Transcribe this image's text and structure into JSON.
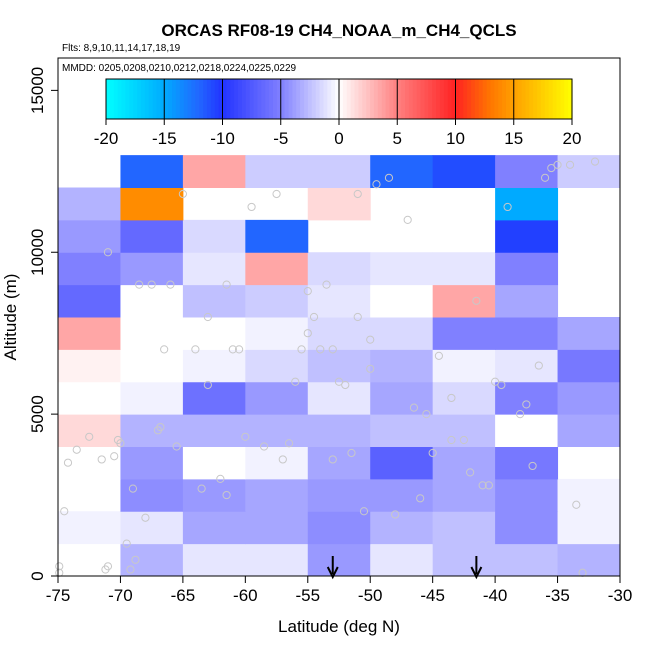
{
  "chart_data": {
    "type": "heatmap",
    "title": "ORCAS RF08-19 CH4_NOAA_m_CH4_QCLS",
    "flights_note": "Flts: 8,9,10,11,14,17,18,19",
    "dates_note": "MMDD: 0205,0208,0210,0212,0218,0224,0225,0229",
    "xlabel": "Latitude (deg N)",
    "ylabel": "Altitude (m)",
    "xlim": [
      -75,
      -30
    ],
    "ylim": [
      0,
      16000
    ],
    "x_ticks": [
      -75,
      -70,
      -65,
      -60,
      -55,
      -50,
      -45,
      -40,
      -35,
      -30
    ],
    "x_tick_labels": [
      "-75",
      "-70",
      "-65",
      "-60",
      "-55",
      "-50",
      "-45",
      "-40",
      "-35",
      "-30"
    ],
    "y_ticks": [
      0,
      5000,
      10000,
      15000
    ],
    "y_tick_labels": [
      "0",
      "5000",
      "10000",
      "15000"
    ],
    "colorbar": {
      "range": [
        -20,
        20
      ],
      "ticks": [
        -20,
        -15,
        -10,
        -5,
        0,
        5,
        10,
        15,
        20
      ],
      "tick_labels": [
        "-20",
        "-15",
        "-10",
        "-5",
        "0",
        "5",
        "10",
        "15",
        "20"
      ],
      "colors": [
        "#00ffff",
        "#00aaff",
        "#2255ff",
        "#2233ff",
        "#8080ff",
        "#ffffff",
        "#ff8080",
        "#ff2222",
        "#ff6600",
        "#ffaa00",
        "#ffff00"
      ]
    },
    "bin_width_deg": 5,
    "bin_height_m": 1000,
    "cells": [
      {
        "x": -75,
        "y": 0,
        "v": 0
      },
      {
        "x": -70,
        "y": 0,
        "v": -3
      },
      {
        "x": -65,
        "y": 0,
        "v": -1
      },
      {
        "x": -60,
        "y": 0,
        "v": -1
      },
      {
        "x": -55,
        "y": 0,
        "v": -4
      },
      {
        "x": -50,
        "y": 0,
        "v": -1
      },
      {
        "x": -45,
        "y": 0,
        "v": -2.5
      },
      {
        "x": -40,
        "y": 0,
        "v": -2.5
      },
      {
        "x": -35,
        "y": 0,
        "v": -3
      },
      {
        "x": -75,
        "y": 1000,
        "v": -0.5
      },
      {
        "x": -70,
        "y": 1000,
        "v": -1
      },
      {
        "x": -65,
        "y": 1000,
        "v": -3.5
      },
      {
        "x": -60,
        "y": 1000,
        "v": -3.5
      },
      {
        "x": -55,
        "y": 1000,
        "v": -4.5
      },
      {
        "x": -50,
        "y": 1000,
        "v": -3
      },
      {
        "x": -45,
        "y": 1000,
        "v": -2.5
      },
      {
        "x": -40,
        "y": 1000,
        "v": -4.5
      },
      {
        "x": -35,
        "y": 1000,
        "v": -0.5
      },
      {
        "x": -70,
        "y": 2000,
        "v": -4.5
      },
      {
        "x": -65,
        "y": 2000,
        "v": -4
      },
      {
        "x": -60,
        "y": 2000,
        "v": -3.5
      },
      {
        "x": -55,
        "y": 2000,
        "v": -4
      },
      {
        "x": -50,
        "y": 2000,
        "v": -4
      },
      {
        "x": -45,
        "y": 2000,
        "v": -3.5
      },
      {
        "x": -40,
        "y": 2000,
        "v": -4.5
      },
      {
        "x": -35,
        "y": 2000,
        "v": -0.5
      },
      {
        "x": -75,
        "y": 3000,
        "v": 0
      },
      {
        "x": -70,
        "y": 3000,
        "v": -4
      },
      {
        "x": -65,
        "y": 3000,
        "v": 0
      },
      {
        "x": -60,
        "y": 3000,
        "v": -0.5
      },
      {
        "x": -55,
        "y": 3000,
        "v": -3.5
      },
      {
        "x": -50,
        "y": 3000,
        "v": -7
      },
      {
        "x": -45,
        "y": 3000,
        "v": -3.5
      },
      {
        "x": -40,
        "y": 3000,
        "v": -5.5
      },
      {
        "x": -75,
        "y": 4000,
        "v": 1.5
      },
      {
        "x": -70,
        "y": 4000,
        "v": -3
      },
      {
        "x": -65,
        "y": 4000,
        "v": -3
      },
      {
        "x": -60,
        "y": 4000,
        "v": -3
      },
      {
        "x": -55,
        "y": 4000,
        "v": -3
      },
      {
        "x": -50,
        "y": 4000,
        "v": -2.5
      },
      {
        "x": -45,
        "y": 4000,
        "v": -2.5
      },
      {
        "x": -40,
        "y": 4000,
        "v": 0
      },
      {
        "x": -35,
        "y": 4000,
        "v": -3.5
      },
      {
        "x": -75,
        "y": 5000,
        "v": 0
      },
      {
        "x": -70,
        "y": 5000,
        "v": -0.5
      },
      {
        "x": -65,
        "y": 5000,
        "v": -6
      },
      {
        "x": -60,
        "y": 5000,
        "v": -4
      },
      {
        "x": -55,
        "y": 5000,
        "v": -1
      },
      {
        "x": -50,
        "y": 5000,
        "v": -3.5
      },
      {
        "x": -45,
        "y": 5000,
        "v": -1.5
      },
      {
        "x": -40,
        "y": 5000,
        "v": -5
      },
      {
        "x": -35,
        "y": 5000,
        "v": -4
      },
      {
        "x": -75,
        "y": 6000,
        "v": 0.5
      },
      {
        "x": -70,
        "y": 6000,
        "v": 0
      },
      {
        "x": -65,
        "y": 6000,
        "v": -0.5
      },
      {
        "x": -60,
        "y": 6000,
        "v": -1.5
      },
      {
        "x": -55,
        "y": 6000,
        "v": -2.5
      },
      {
        "x": -50,
        "y": 6000,
        "v": -3
      },
      {
        "x": -45,
        "y": 6000,
        "v": -0.5
      },
      {
        "x": -40,
        "y": 6000,
        "v": -1
      },
      {
        "x": -35,
        "y": 6000,
        "v": -5.5
      },
      {
        "x": -75,
        "y": 7000,
        "v": 3.5
      },
      {
        "x": -70,
        "y": 7000,
        "v": 0
      },
      {
        "x": -65,
        "y": 7000,
        "v": 0
      },
      {
        "x": -60,
        "y": 7000,
        "v": -0.5
      },
      {
        "x": -55,
        "y": 7000,
        "v": -1.5
      },
      {
        "x": -50,
        "y": 7000,
        "v": -1.5
      },
      {
        "x": -45,
        "y": 7000,
        "v": -5
      },
      {
        "x": -40,
        "y": 7000,
        "v": -5
      },
      {
        "x": -35,
        "y": 7000,
        "v": -3.5
      },
      {
        "x": -75,
        "y": 8000,
        "v": -6.5
      },
      {
        "x": -70,
        "y": 8000,
        "v": 0
      },
      {
        "x": -65,
        "y": 8000,
        "v": -2.5
      },
      {
        "x": -60,
        "y": 8000,
        "v": -2
      },
      {
        "x": -55,
        "y": 8000,
        "v": -1
      },
      {
        "x": -50,
        "y": 8000,
        "v": 0
      },
      {
        "x": -45,
        "y": 8000,
        "v": 3.5
      },
      {
        "x": -40,
        "y": 8000,
        "v": -3.5
      },
      {
        "x": -75,
        "y": 9000,
        "v": -5
      },
      {
        "x": -70,
        "y": 9000,
        "v": -4
      },
      {
        "x": -65,
        "y": 9000,
        "v": -1
      },
      {
        "x": -60,
        "y": 9000,
        "v": 3.5
      },
      {
        "x": -55,
        "y": 9000,
        "v": -1.5
      },
      {
        "x": -50,
        "y": 9000,
        "v": -1
      },
      {
        "x": -45,
        "y": 9000,
        "v": -1
      },
      {
        "x": -40,
        "y": 9000,
        "v": -5
      },
      {
        "x": -75,
        "y": 10000,
        "v": -4
      },
      {
        "x": -70,
        "y": 10000,
        "v": -6.5
      },
      {
        "x": -65,
        "y": 10000,
        "v": -1.5
      },
      {
        "x": -60,
        "y": 10000,
        "v": -12
      },
      {
        "x": -40,
        "y": 10000,
        "v": -10.5
      },
      {
        "x": -75,
        "y": 11000,
        "v": -3
      },
      {
        "x": -70,
        "y": 11000,
        "v": 14
      },
      {
        "x": -55,
        "y": 11000,
        "v": 1.5
      },
      {
        "x": -40,
        "y": 11000,
        "v": -15
      },
      {
        "x": -70,
        "y": 12000,
        "v": -12
      },
      {
        "x": -65,
        "y": 12000,
        "v": 3.5
      },
      {
        "x": -60,
        "y": 12000,
        "v": -2
      },
      {
        "x": -55,
        "y": 12000,
        "v": -2
      },
      {
        "x": -50,
        "y": 12000,
        "v": -12
      },
      {
        "x": -45,
        "y": 12000,
        "v": -11
      },
      {
        "x": -40,
        "y": 12000,
        "v": -5
      },
      {
        "x": -35,
        "y": 12000,
        "v": -2
      }
    ],
    "points": [
      [
        -74.9,
        100
      ],
      [
        -74.9,
        300
      ],
      [
        -74.5,
        2000
      ],
      [
        -74.2,
        3500
      ],
      [
        -73.5,
        3900
      ],
      [
        -72.5,
        4300
      ],
      [
        -71.5,
        3600
      ],
      [
        -71.0,
        10000
      ],
      [
        -71.2,
        200
      ],
      [
        -71.0,
        300
      ],
      [
        -70.5,
        3700
      ],
      [
        -70.0,
        4100
      ],
      [
        -70.2,
        4200
      ],
      [
        -69.5,
        1000
      ],
      [
        -69.0,
        2700
      ],
      [
        -69.2,
        200
      ],
      [
        -68.5,
        9000
      ],
      [
        -68.0,
        1800
      ],
      [
        -68.8,
        500
      ],
      [
        -67.5,
        9000
      ],
      [
        -67.0,
        4500
      ],
      [
        -66.8,
        4600
      ],
      [
        -66.5,
        7000
      ],
      [
        -66.0,
        9000
      ],
      [
        -65.5,
        4000
      ],
      [
        -65.0,
        11800
      ],
      [
        -64.0,
        7000
      ],
      [
        -63.5,
        2700
      ],
      [
        -63.0,
        5900
      ],
      [
        -63.0,
        8000
      ],
      [
        -62.0,
        3000
      ],
      [
        -61.5,
        2500
      ],
      [
        -61.5,
        9000
      ],
      [
        -61.0,
        7000
      ],
      [
        -60.5,
        7000
      ],
      [
        -60.0,
        4300
      ],
      [
        -59.5,
        11400
      ],
      [
        -58.5,
        4000
      ],
      [
        -57.5,
        11800
      ],
      [
        -57.0,
        3600
      ],
      [
        -56.5,
        4100
      ],
      [
        -56.0,
        6000
      ],
      [
        -55.5,
        7000
      ],
      [
        -55.0,
        7500
      ],
      [
        -55.0,
        8800
      ],
      [
        -54.5,
        8000
      ],
      [
        -54.0,
        7000
      ],
      [
        -53.5,
        9000
      ],
      [
        -53.0,
        3600
      ],
      [
        -53.0,
        7000
      ],
      [
        -52.5,
        6000
      ],
      [
        -52.0,
        5900
      ],
      [
        -51.5,
        3800
      ],
      [
        -51.0,
        8000
      ],
      [
        -51.0,
        11800
      ],
      [
        -50.5,
        2000
      ],
      [
        -50.0,
        7300
      ],
      [
        -50.0,
        6400
      ],
      [
        -49.5,
        12100
      ],
      [
        -48.5,
        12300
      ],
      [
        -48.0,
        1900
      ],
      [
        -47.0,
        11000
      ],
      [
        -46.5,
        5200
      ],
      [
        -46.0,
        2400
      ],
      [
        -45.5,
        5000
      ],
      [
        -45.0,
        3800
      ],
      [
        -44.5,
        6800
      ],
      [
        -43.5,
        5500
      ],
      [
        -43.5,
        4200
      ],
      [
        -42.5,
        4200
      ],
      [
        -42.0,
        3200
      ],
      [
        -41.5,
        8500
      ],
      [
        -41.0,
        2800
      ],
      [
        -40.5,
        2800
      ],
      [
        -40.0,
        6000
      ],
      [
        -39.5,
        5900
      ],
      [
        -39.0,
        11400
      ],
      [
        -38.0,
        5000
      ],
      [
        -37.5,
        5300
      ],
      [
        -37.0,
        3400
      ],
      [
        -36.5,
        6500
      ],
      [
        -36.0,
        12300
      ],
      [
        -35.5,
        12600
      ],
      [
        -35.0,
        12700
      ],
      [
        -34.0,
        12700
      ],
      [
        -33.5,
        2200
      ],
      [
        -33.0,
        100
      ],
      [
        -32.0,
        12800
      ]
    ],
    "arrows_x": [
      -53,
      -41.5
    ]
  }
}
